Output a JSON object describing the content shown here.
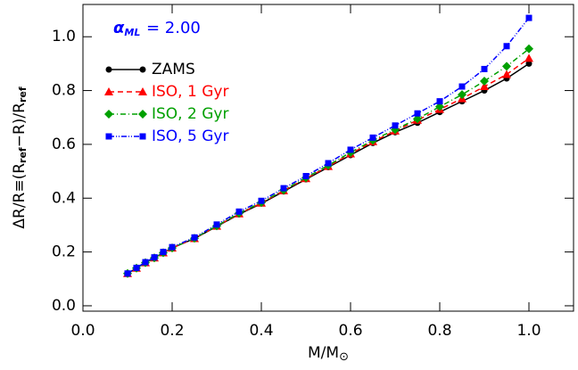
{
  "chart_data": {
    "type": "line",
    "annotation": [
      "α",
      "ML",
      "= 2.00"
    ],
    "xlabel": [
      "M/M",
      "⊙"
    ],
    "ylabel": [
      "ΔR/R≡(R",
      "ref",
      "−R)/R",
      "ref"
    ],
    "x": [
      0.1,
      0.12,
      0.14,
      0.16,
      0.18,
      0.2,
      0.25,
      0.3,
      0.35,
      0.4,
      0.45,
      0.5,
      0.55,
      0.6,
      0.65,
      0.7,
      0.75,
      0.8,
      0.85,
      0.9,
      0.95,
      1.0
    ],
    "series": [
      {
        "name": "ZAMS",
        "color": "#000000",
        "marker": "circle",
        "dash": "",
        "values": [
          0.12,
          0.14,
          0.16,
          0.178,
          0.197,
          0.215,
          0.25,
          0.295,
          0.34,
          0.38,
          0.425,
          0.47,
          0.515,
          0.56,
          0.605,
          0.645,
          0.68,
          0.72,
          0.76,
          0.8,
          0.845,
          0.9
        ]
      },
      {
        "name": "ISO, 1 Gyr",
        "color": "#ff0000",
        "marker": "triangle",
        "dash": "6 4",
        "values": [
          0.12,
          0.14,
          0.16,
          0.178,
          0.197,
          0.215,
          0.25,
          0.296,
          0.342,
          0.382,
          0.428,
          0.473,
          0.518,
          0.565,
          0.61,
          0.65,
          0.69,
          0.73,
          0.77,
          0.815,
          0.86,
          0.92
        ]
      },
      {
        "name": "ISO, 2 Gyr",
        "color": "#00a000",
        "marker": "diamond",
        "dash": "6 3 1 3",
        "values": [
          0.12,
          0.14,
          0.16,
          0.178,
          0.197,
          0.215,
          0.251,
          0.297,
          0.344,
          0.384,
          0.43,
          0.476,
          0.522,
          0.57,
          0.615,
          0.655,
          0.695,
          0.74,
          0.785,
          0.835,
          0.89,
          0.955
        ]
      },
      {
        "name": "ISO, 5 Gyr",
        "color": "#0000ff",
        "marker": "square",
        "dash": "6 2 1 2 1 2",
        "values": [
          0.12,
          0.141,
          0.162,
          0.18,
          0.2,
          0.218,
          0.254,
          0.302,
          0.35,
          0.39,
          0.437,
          0.482,
          0.53,
          0.58,
          0.625,
          0.67,
          0.715,
          0.76,
          0.815,
          0.88,
          0.965,
          1.07
        ]
      }
    ],
    "xlim": [
      0,
      1.1
    ],
    "ylim": [
      -0.02,
      1.12
    ],
    "xticks": [
      {
        "value": 0,
        "label": "0.0"
      },
      0.2,
      0.4,
      0.6,
      0.8,
      {
        "value": 1,
        "label": "1.0"
      }
    ],
    "yticks": [
      {
        "value": 0,
        "label": "0.0"
      },
      0.2,
      0.4,
      0.6,
      0.8,
      {
        "value": 1,
        "label": "1.0"
      }
    ],
    "legend": "upper left"
  }
}
